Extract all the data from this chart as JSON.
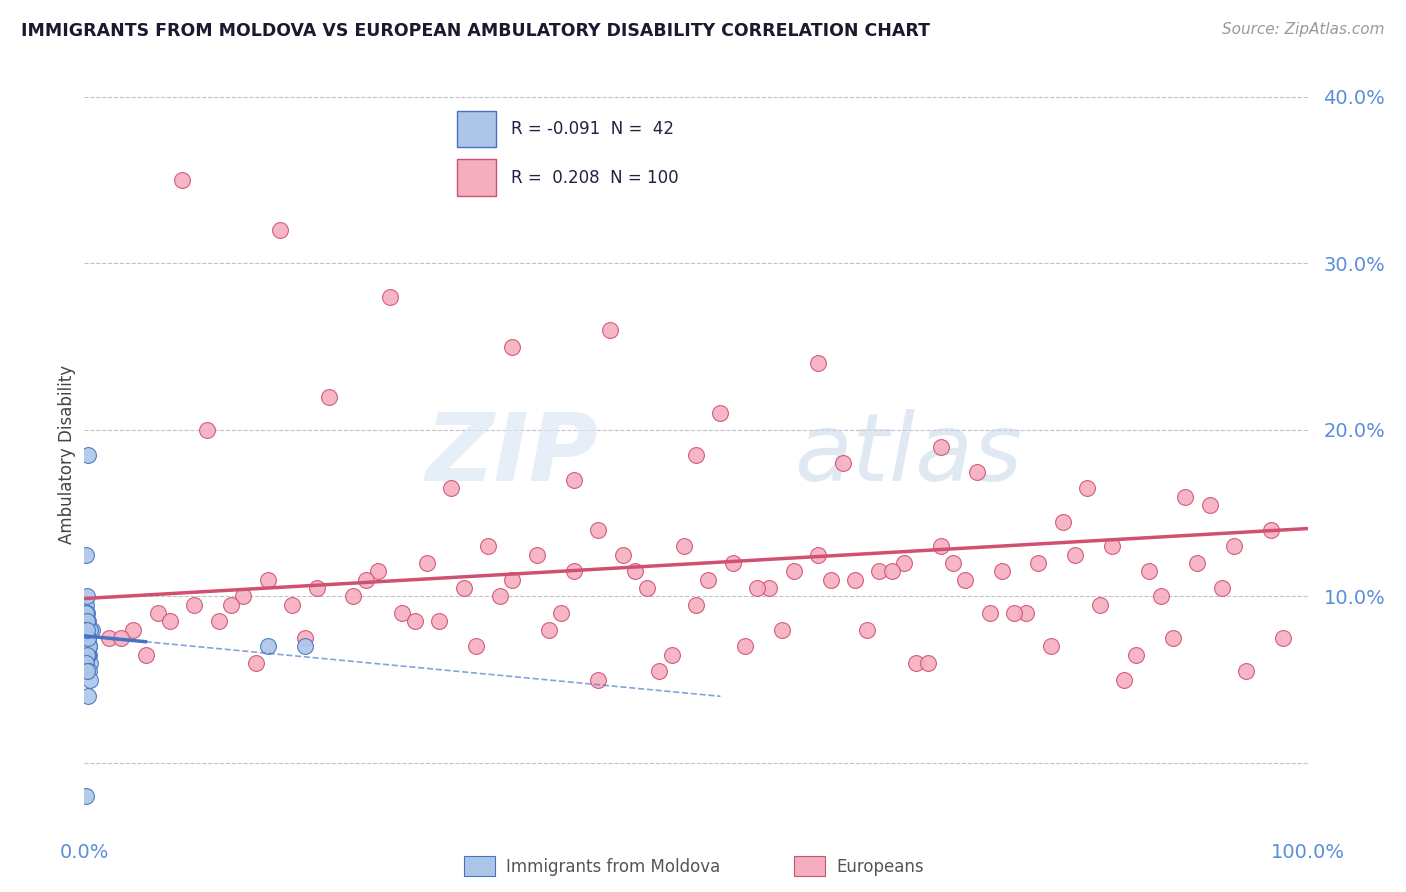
{
  "title": "IMMIGRANTS FROM MOLDOVA VS EUROPEAN AMBULATORY DISABILITY CORRELATION CHART",
  "source": "Source: ZipAtlas.com",
  "ylabel": "Ambulatory Disability",
  "moldova_R": -0.091,
  "moldova_N": 42,
  "european_R": 0.208,
  "european_N": 100,
  "moldova_color": "#adc6e8",
  "european_color": "#f5aec0",
  "moldova_line_color": "#4472c4",
  "european_line_color": "#d05070",
  "legend_label_moldova": "Immigrants from Moldova",
  "legend_label_european": "Europeans",
  "watermark_zip": "ZIP",
  "watermark_atlas": "atlas",
  "background_color": "#ffffff",
  "xlim": [
    0.0,
    1.0
  ],
  "ylim": [
    -0.04,
    0.41
  ],
  "yticks": [
    0.0,
    0.1,
    0.2,
    0.3,
    0.4
  ],
  "ytick_labels": [
    "",
    "10.0%",
    "20.0%",
    "30.0%",
    "40.0%"
  ],
  "moldova_x": [
    0.002,
    0.003,
    0.001,
    0.004,
    0.002,
    0.005,
    0.003,
    0.001,
    0.002,
    0.006,
    0.001,
    0.003,
    0.002,
    0.004,
    0.001,
    0.005,
    0.002,
    0.003,
    0.001,
    0.004,
    0.002,
    0.001,
    0.003,
    0.002,
    0.001,
    0.004,
    0.002,
    0.001,
    0.003,
    0.002,
    0.001,
    0.002,
    0.003,
    0.004,
    0.002,
    0.001,
    0.005,
    0.002,
    0.001,
    0.003,
    0.15,
    0.18
  ],
  "moldova_y": [
    0.08,
    0.07,
    0.09,
    0.065,
    0.075,
    0.06,
    0.085,
    0.095,
    0.07,
    0.08,
    0.065,
    0.075,
    0.09,
    0.07,
    0.085,
    0.08,
    0.075,
    0.065,
    0.09,
    0.07,
    0.085,
    0.08,
    0.075,
    0.065,
    0.09,
    0.07,
    0.085,
    0.08,
    0.075,
    0.065,
    0.06,
    0.1,
    0.185,
    0.055,
    0.08,
    0.125,
    0.05,
    0.055,
    -0.02,
    0.04,
    0.07,
    0.07
  ],
  "european_x": [
    0.02,
    0.04,
    0.06,
    0.09,
    0.11,
    0.13,
    0.15,
    0.17,
    0.19,
    0.22,
    0.24,
    0.26,
    0.28,
    0.31,
    0.33,
    0.35,
    0.37,
    0.4,
    0.42,
    0.44,
    0.46,
    0.49,
    0.51,
    0.53,
    0.56,
    0.58,
    0.6,
    0.63,
    0.65,
    0.67,
    0.7,
    0.72,
    0.75,
    0.78,
    0.81,
    0.84,
    0.87,
    0.91,
    0.94,
    0.97,
    0.07,
    0.12,
    0.18,
    0.23,
    0.29,
    0.34,
    0.39,
    0.45,
    0.5,
    0.55,
    0.61,
    0.66,
    0.71,
    0.77,
    0.83,
    0.88,
    0.93,
    0.98,
    0.1,
    0.2,
    0.3,
    0.4,
    0.5,
    0.6,
    0.7,
    0.8,
    0.9,
    0.08,
    0.16,
    0.25,
    0.35,
    0.43,
    0.52,
    0.62,
    0.73,
    0.82,
    0.92,
    0.05,
    0.14,
    0.32,
    0.47,
    0.57,
    0.68,
    0.79,
    0.86,
    0.95,
    0.03,
    0.38,
    0.54,
    0.76,
    0.85,
    0.27,
    0.48,
    0.64,
    0.74,
    0.89,
    0.42,
    0.69
  ],
  "european_y": [
    0.075,
    0.08,
    0.09,
    0.095,
    0.085,
    0.1,
    0.11,
    0.095,
    0.105,
    0.1,
    0.115,
    0.09,
    0.12,
    0.105,
    0.13,
    0.11,
    0.125,
    0.115,
    0.14,
    0.125,
    0.105,
    0.13,
    0.11,
    0.12,
    0.105,
    0.115,
    0.125,
    0.11,
    0.115,
    0.12,
    0.13,
    0.11,
    0.115,
    0.12,
    0.125,
    0.13,
    0.115,
    0.12,
    0.13,
    0.14,
    0.085,
    0.095,
    0.075,
    0.11,
    0.085,
    0.1,
    0.09,
    0.115,
    0.095,
    0.105,
    0.11,
    0.115,
    0.12,
    0.09,
    0.095,
    0.1,
    0.105,
    0.075,
    0.2,
    0.22,
    0.165,
    0.17,
    0.185,
    0.24,
    0.19,
    0.145,
    0.16,
    0.35,
    0.32,
    0.28,
    0.25,
    0.26,
    0.21,
    0.18,
    0.175,
    0.165,
    0.155,
    0.065,
    0.06,
    0.07,
    0.055,
    0.08,
    0.06,
    0.07,
    0.065,
    0.055,
    0.075,
    0.08,
    0.07,
    0.09,
    0.05,
    0.085,
    0.065,
    0.08,
    0.09,
    0.075,
    0.05,
    0.06
  ]
}
